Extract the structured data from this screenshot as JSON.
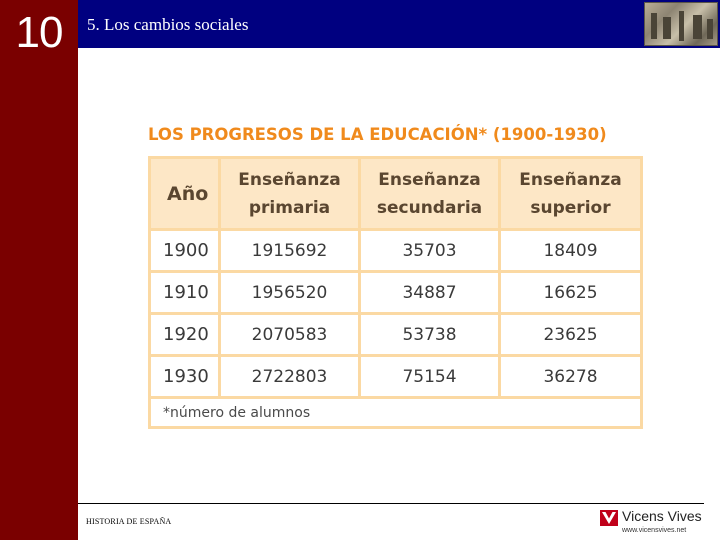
{
  "slide": {
    "chapter_number": "10",
    "title": "5. Los cambios sociales"
  },
  "table": {
    "title": "LOS PROGRESOS DE LA EDUCACIÓN* (1900-1930)",
    "headers": {
      "year": "Año",
      "primary_line1": "Enseñanza",
      "primary_line2": "primaria",
      "secondary_line1": "Enseñanza",
      "secondary_line2": "secundaria",
      "superior_line1": "Enseñanza",
      "superior_line2": "superior"
    },
    "rows": [
      {
        "year": "1900",
        "primaria": "1915692",
        "secundaria": "35703",
        "superior": "18409"
      },
      {
        "year": "1910",
        "primaria": "1956520",
        "secundaria": "34887",
        "superior": "16625"
      },
      {
        "year": "1920",
        "primaria": "2070583",
        "secundaria": "53738",
        "superior": "23625"
      },
      {
        "year": "1930",
        "primaria": "2722803",
        "secundaria": "75154",
        "superior": "36278"
      }
    ],
    "note": "*número de alumnos"
  },
  "footer": {
    "subject": "HISTORIA DE ESPAÑA",
    "brand_name": "Vicens Vives",
    "brand_url": "www.vicensvives.net"
  },
  "colors": {
    "sidebar": "#7a0000",
    "topbar": "#000080",
    "table_title": "#f08a1c",
    "table_header_bg": "#fde7c6",
    "table_border": "#fbd9a3",
    "brand_red": "#c0001a"
  }
}
